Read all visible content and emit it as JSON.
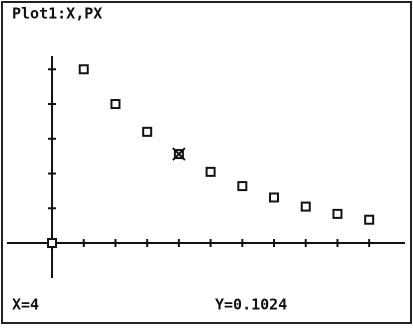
{
  "chart_data": {
    "type": "scatter",
    "title": "Plot1:X,PX",
    "x": [
      0,
      1,
      2,
      3,
      4,
      5,
      6,
      7,
      8,
      9,
      10
    ],
    "values": [
      0,
      0.2,
      0.16,
      0.128,
      0.1024,
      0.08192,
      0.065536,
      0.0524288,
      0.04194304,
      0.033554432,
      0.0268435456
    ],
    "color": "#111111",
    "xlim": [
      -1.42,
      11.13
    ],
    "ylim": [
      -0.046,
      0.236
    ],
    "xticks": [
      1,
      2,
      3,
      4,
      5,
      6,
      7,
      8,
      9,
      10
    ],
    "yticks": [
      0.04,
      0.08,
      0.12,
      0.16,
      0.2
    ],
    "cursor": {
      "x": 4,
      "x_label": "X=4",
      "y_label": "Y=0.1024"
    }
  }
}
